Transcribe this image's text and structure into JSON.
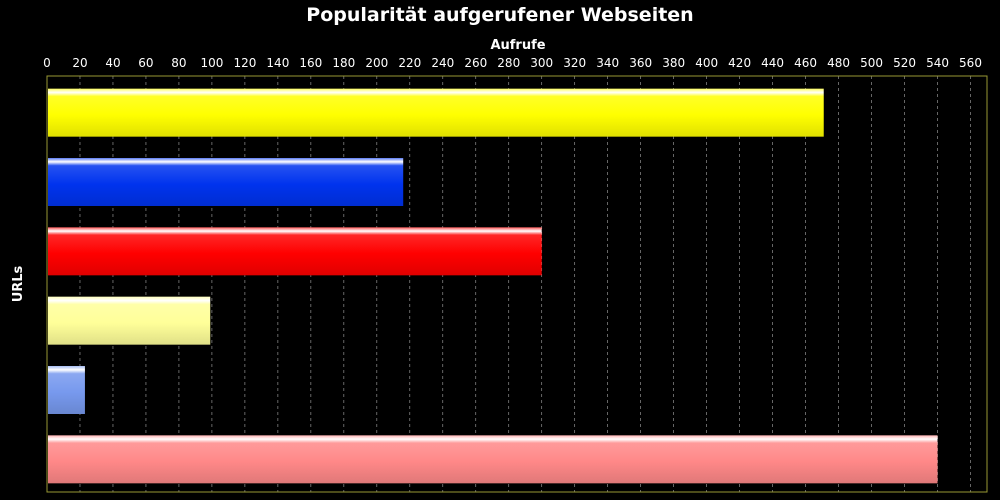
{
  "chart_data": {
    "type": "bar",
    "orientation": "horizontal",
    "title": "Popularität aufgerufener Webseiten",
    "xlabel": "Aufrufe",
    "ylabel": "URLs",
    "xlim": [
      0,
      570
    ],
    "x_ticks": [
      0,
      20,
      40,
      60,
      80,
      100,
      120,
      140,
      160,
      180,
      200,
      220,
      240,
      260,
      280,
      300,
      320,
      340,
      360,
      380,
      400,
      420,
      440,
      460,
      480,
      500,
      520,
      540,
      560
    ],
    "x_axis_position": "top",
    "grid": true,
    "legend": "none",
    "categories": [
      "",
      "",
      "",
      "",
      "",
      ""
    ],
    "values": [
      471,
      216,
      300,
      99,
      23,
      540
    ],
    "colors": [
      "#ffff00",
      "#0033ee",
      "#ff0000",
      "#ffff99",
      "#7799ee",
      "#ff8888"
    ],
    "background_color": "#000000",
    "frame_color": "#999933",
    "grid_color": "#aaaaaa"
  }
}
